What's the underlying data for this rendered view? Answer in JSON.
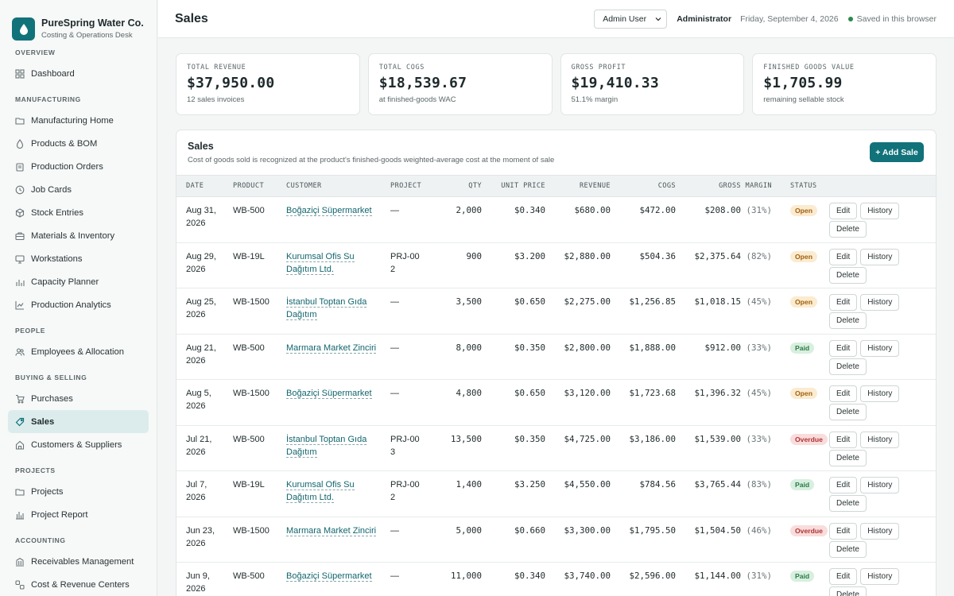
{
  "brand": {
    "name": "PureSpring Water Co.",
    "subtitle": "Costing & Operations Desk"
  },
  "sidebar": {
    "sections": [
      {
        "label": "OVERVIEW",
        "items": [
          {
            "label": "Dashboard",
            "icon": "grid-icon"
          }
        ]
      },
      {
        "label": "MANUFACTURING",
        "items": [
          {
            "label": "Manufacturing Home",
            "icon": "folder-icon"
          },
          {
            "label": "Products & BOM",
            "icon": "droplet-icon"
          },
          {
            "label": "Production Orders",
            "icon": "clipboard-icon"
          },
          {
            "label": "Job Cards",
            "icon": "clock-icon"
          },
          {
            "label": "Stock Entries",
            "icon": "box-icon"
          },
          {
            "label": "Materials & Inventory",
            "icon": "briefcase-icon"
          },
          {
            "label": "Workstations",
            "icon": "monitor-icon"
          },
          {
            "label": "Capacity Planner",
            "icon": "bars-icon"
          },
          {
            "label": "Production Analytics",
            "icon": "trend-icon"
          }
        ]
      },
      {
        "label": "PEOPLE",
        "items": [
          {
            "label": "Employees & Allocation",
            "icon": "users-icon"
          }
        ]
      },
      {
        "label": "BUYING & SELLING",
        "items": [
          {
            "label": "Purchases",
            "icon": "cart-icon"
          },
          {
            "label": "Sales",
            "icon": "tag-icon",
            "active": true
          },
          {
            "label": "Customers & Suppliers",
            "icon": "home-icon"
          }
        ]
      },
      {
        "label": "PROJECTS",
        "items": [
          {
            "label": "Projects",
            "icon": "folder-icon"
          },
          {
            "label": "Project Report",
            "icon": "chart-icon"
          }
        ]
      },
      {
        "label": "ACCOUNTING",
        "items": [
          {
            "label": "Receivables Management",
            "icon": "wallet-icon"
          },
          {
            "label": "Cost & Revenue Centers",
            "icon": "layers-icon"
          }
        ]
      }
    ]
  },
  "header": {
    "title": "Sales",
    "user_select": "Admin User",
    "role": "Administrator",
    "date": "Friday, September 4, 2026",
    "saved": "Saved in this browser"
  },
  "kpis": [
    {
      "label": "TOTAL REVENUE",
      "value": "$37,950.00",
      "sub": "12 sales invoices"
    },
    {
      "label": "TOTAL COGS",
      "value": "$18,539.67",
      "sub": "at finished-goods WAC"
    },
    {
      "label": "GROSS PROFIT",
      "value": "$19,410.33",
      "sub": "51.1% margin"
    },
    {
      "label": "FINISHED GOODS VALUE",
      "value": "$1,705.99",
      "sub": "remaining sellable stock"
    }
  ],
  "sales": {
    "title": "Sales",
    "subtitle": "Cost of goods sold is recognized at the product's finished-goods weighted-average cost at the moment of sale",
    "add_label": "+ Add Sale",
    "columns": [
      "DATE",
      "PRODUCT",
      "CUSTOMER",
      "PROJECT",
      "QTY",
      "UNIT PRICE",
      "REVENUE",
      "COGS",
      "GROSS MARGIN",
      "STATUS"
    ],
    "actions": {
      "edit": "Edit",
      "history": "History",
      "delete": "Delete"
    },
    "rows": [
      {
        "date": "Aug 31, 2026",
        "product": "WB-500",
        "customer": "Boğaziçi Süpermarket",
        "project": "—",
        "qty": "2,000",
        "unit_price": "$0.340",
        "revenue": "$680.00",
        "cogs": "$472.00",
        "margin": "$208.00",
        "margin_pct": "(31%)",
        "status": "Open"
      },
      {
        "date": "Aug 29, 2026",
        "product": "WB-19L",
        "customer": "Kurumsal Ofis Su Dağıtım Ltd.",
        "project": "PRJ-002",
        "qty": "900",
        "unit_price": "$3.200",
        "revenue": "$2,880.00",
        "cogs": "$504.36",
        "margin": "$2,375.64",
        "margin_pct": "(82%)",
        "status": "Open"
      },
      {
        "date": "Aug 25, 2026",
        "product": "WB-1500",
        "customer": "İstanbul Toptan Gıda Dağıtım",
        "project": "—",
        "qty": "3,500",
        "unit_price": "$0.650",
        "revenue": "$2,275.00",
        "cogs": "$1,256.85",
        "margin": "$1,018.15",
        "margin_pct": "(45%)",
        "status": "Open"
      },
      {
        "date": "Aug 21, 2026",
        "product": "WB-500",
        "customer": "Marmara Market Zinciri",
        "project": "—",
        "qty": "8,000",
        "unit_price": "$0.350",
        "revenue": "$2,800.00",
        "cogs": "$1,888.00",
        "margin": "$912.00",
        "margin_pct": "(33%)",
        "status": "Paid"
      },
      {
        "date": "Aug 5, 2026",
        "product": "WB-1500",
        "customer": "Boğaziçi Süpermarket",
        "project": "—",
        "qty": "4,800",
        "unit_price": "$0.650",
        "revenue": "$3,120.00",
        "cogs": "$1,723.68",
        "margin": "$1,396.32",
        "margin_pct": "(45%)",
        "status": "Open"
      },
      {
        "date": "Jul 21, 2026",
        "product": "WB-500",
        "customer": "İstanbul Toptan Gıda Dağıtım",
        "project": "PRJ-003",
        "qty": "13,500",
        "unit_price": "$0.350",
        "revenue": "$4,725.00",
        "cogs": "$3,186.00",
        "margin": "$1,539.00",
        "margin_pct": "(33%)",
        "status": "Overdue"
      },
      {
        "date": "Jul 7, 2026",
        "product": "WB-19L",
        "customer": "Kurumsal Ofis Su Dağıtım Ltd.",
        "project": "PRJ-002",
        "qty": "1,400",
        "unit_price": "$3.250",
        "revenue": "$4,550.00",
        "cogs": "$784.56",
        "margin": "$3,765.44",
        "margin_pct": "(83%)",
        "status": "Paid"
      },
      {
        "date": "Jun 23, 2026",
        "product": "WB-1500",
        "customer": "Marmara Market Zinciri",
        "project": "—",
        "qty": "5,000",
        "unit_price": "$0.660",
        "revenue": "$3,300.00",
        "cogs": "$1,795.50",
        "margin": "$1,504.50",
        "margin_pct": "(46%)",
        "status": "Overdue"
      },
      {
        "date": "Jun 9, 2026",
        "product": "WB-500",
        "customer": "Boğaziçi Süpermarket",
        "project": "—",
        "qty": "11,000",
        "unit_price": "$0.340",
        "revenue": "$3,740.00",
        "cogs": "$2,596.00",
        "margin": "$1,144.00",
        "margin_pct": "(31%)",
        "status": "Paid"
      }
    ]
  },
  "colors": {
    "accent": "#11727a",
    "active_nav_bg": "#dcecec",
    "open": "#fbebd0",
    "paid": "#d8efdf",
    "overdue": "#f9dcdc"
  }
}
